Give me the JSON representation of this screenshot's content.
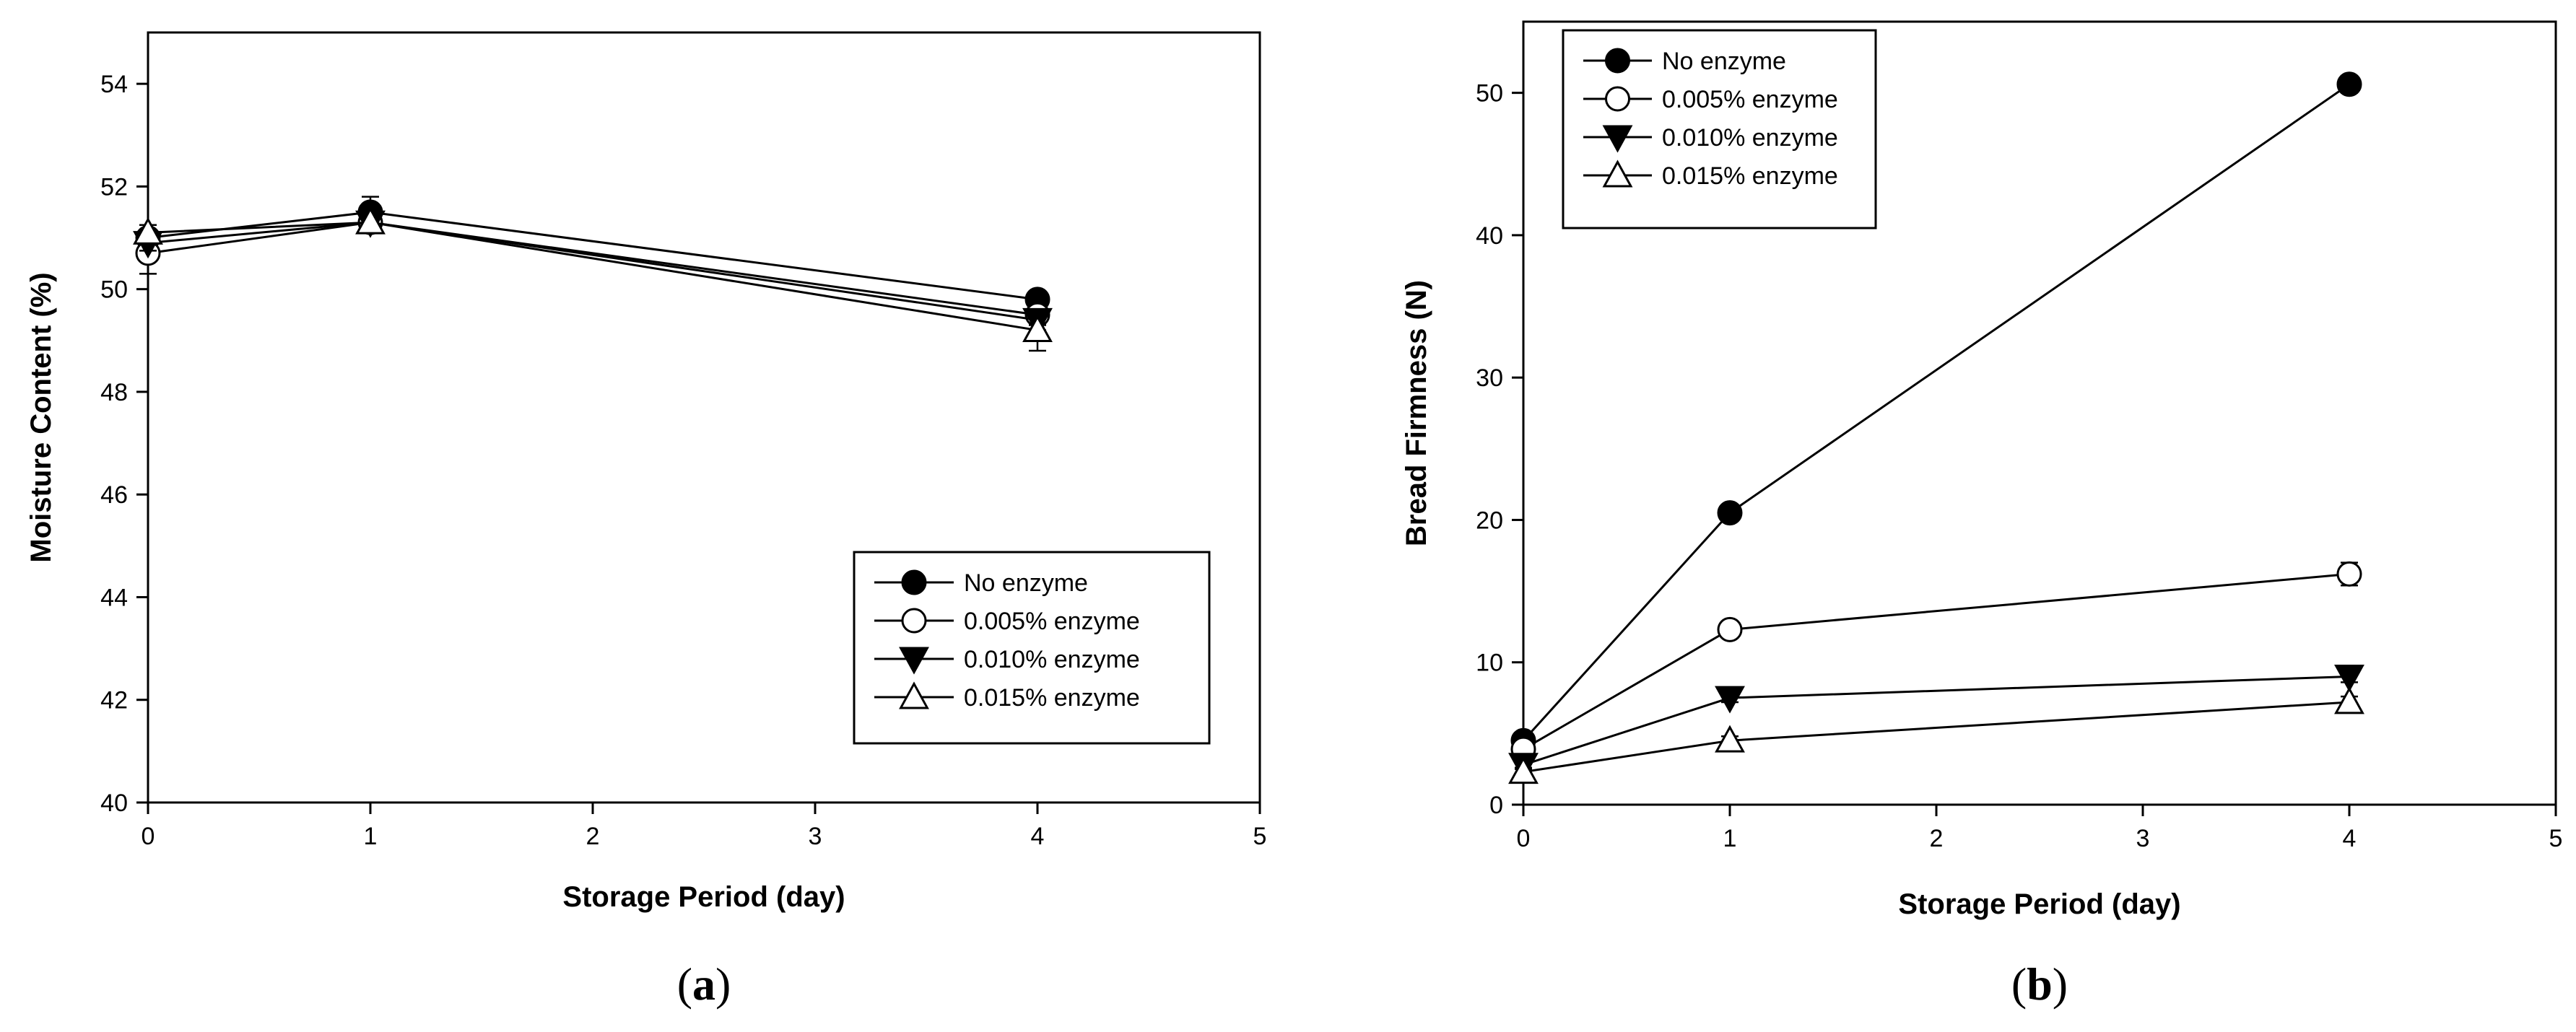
{
  "chart_data": [
    {
      "type": "line",
      "panel_label_open": "(",
      "panel_label_letter": "a",
      "panel_label_close": ")",
      "xlabel": "Storage Period (day)",
      "ylabel": "Moisture Content (%)",
      "xlim": [
        0,
        5
      ],
      "ylim": [
        40,
        55
      ],
      "xticks": [
        0,
        1,
        2,
        3,
        4,
        5
      ],
      "yticks": [
        40,
        42,
        44,
        46,
        48,
        50,
        52,
        54
      ],
      "legend_position": "lower-right",
      "x": [
        0,
        1,
        4
      ],
      "series": [
        {
          "name": "No enzyme",
          "marker": "circle-filled",
          "values": [
            51.0,
            51.5,
            49.8
          ],
          "errors": [
            0.1,
            0.3,
            0.15
          ]
        },
        {
          "name": "0.005% enzyme",
          "marker": "circle-open",
          "values": [
            50.7,
            51.3,
            49.5
          ],
          "errors": [
            0.4,
            0.2,
            0.2
          ]
        },
        {
          "name": "0.010% enzyme",
          "marker": "triangle-down-filled",
          "values": [
            50.9,
            51.3,
            49.4
          ],
          "errors": [
            0.15,
            0.2,
            0.2
          ]
        },
        {
          "name": "0.015% enzyme",
          "marker": "triangle-up-open",
          "values": [
            51.1,
            51.3,
            49.2
          ],
          "errors": [
            0.15,
            0.2,
            0.4
          ]
        }
      ]
    },
    {
      "type": "line",
      "panel_label_open": "(",
      "panel_label_letter": "b",
      "panel_label_close": ")",
      "xlabel": "Storage Period (day)",
      "ylabel": "Bread Firmness (N)",
      "xlim": [
        0,
        5
      ],
      "ylim": [
        0,
        55
      ],
      "xticks": [
        0,
        1,
        2,
        3,
        4,
        5
      ],
      "yticks": [
        0,
        10,
        20,
        30,
        40,
        50
      ],
      "legend_position": "top-left",
      "x": [
        0,
        1,
        4
      ],
      "series": [
        {
          "name": "No enzyme",
          "marker": "circle-filled",
          "values": [
            4.5,
            20.5,
            50.6
          ],
          "errors": [
            0.3,
            0.4,
            0.6
          ]
        },
        {
          "name": "0.005% enzyme",
          "marker": "circle-open",
          "values": [
            3.9,
            12.3,
            16.2
          ],
          "errors": [
            0.3,
            0.4,
            0.8
          ]
        },
        {
          "name": "0.010% enzyme",
          "marker": "triangle-down-filled",
          "values": [
            2.8,
            7.5,
            9.0
          ],
          "errors": [
            0.2,
            0.3,
            0.4
          ]
        },
        {
          "name": "0.015% enzyme",
          "marker": "triangle-up-open",
          "values": [
            2.3,
            4.5,
            7.2
          ],
          "errors": [
            0.2,
            0.3,
            0.4
          ]
        }
      ]
    }
  ]
}
